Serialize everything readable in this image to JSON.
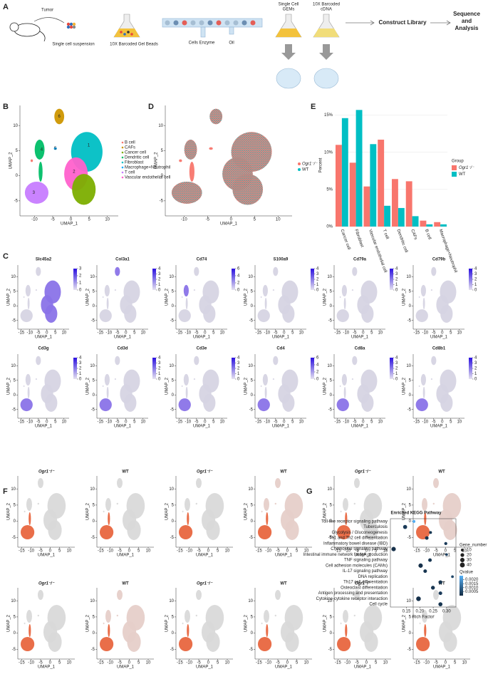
{
  "panel_labels": [
    "A",
    "B",
    "C",
    "D",
    "E",
    "F",
    "G"
  ],
  "workflow": {
    "tumor": "Tumor",
    "steps": [
      [
        "Single cell suspension"
      ],
      [
        "10X Barcoded Gel Beads"
      ],
      [
        "Cells Enzyme"
      ],
      [
        "Oil"
      ],
      [
        "Single Cell",
        "GEMs"
      ],
      [
        "10X Barcoded",
        "cDNA"
      ],
      [
        "Construct Library"
      ],
      [
        "Sequence",
        "and",
        "Analysis"
      ]
    ]
  },
  "umap": {
    "x_label": "UMAP_1",
    "y_label": "UMAP_2",
    "xlim": [
      -14,
      13
    ],
    "ylim": [
      -8,
      14
    ],
    "xticks": [
      -10,
      -5,
      0,
      5,
      10
    ],
    "yticks": [
      -5,
      0,
      5,
      10
    ]
  },
  "panel_b": {
    "cluster_labels": [
      "1",
      "2",
      "3",
      "4",
      "5",
      "6"
    ],
    "legend": [
      "B cell",
      "CAFs",
      "Cancer cell",
      "Dendritic cell",
      "Fibroblast",
      "Macrophage+Neutrophil",
      "T cell",
      "Vascular endothelial cell"
    ],
    "colors": [
      "#F8766D",
      "#CD9600",
      "#7CAE00",
      "#00BE67",
      "#00BFC4",
      "#00A9FF",
      "#C77CFF",
      "#FF61CC"
    ]
  },
  "panel_d": {
    "legend": [
      "Ogr1⁻/⁻",
      "WT"
    ],
    "colors": [
      "#F8766D",
      "#00BFC4"
    ]
  },
  "panel_c": {
    "genes": [
      "Slc45a2",
      "Col3a1",
      "Cd74",
      "S100a9",
      "Cd79a",
      "Cd79b",
      "Cd3g",
      "Cd3d",
      "Cd3e",
      "Cd4",
      "Cd8a",
      "Cd8b1"
    ],
    "scale_ticks": [
      [
        0,
        1,
        2,
        3
      ],
      [
        0,
        1,
        2,
        3,
        4
      ],
      [
        0,
        2,
        4,
        6
      ],
      [
        0,
        1,
        2,
        3,
        4
      ],
      [
        0,
        1,
        2,
        3,
        4
      ],
      [
        0,
        1,
        2,
        3,
        4
      ],
      [
        0,
        1,
        2,
        3,
        4
      ],
      [
        0,
        1,
        2,
        3,
        4
      ],
      [
        0,
        1,
        2,
        3,
        4
      ],
      [
        0,
        2,
        4,
        6
      ],
      [
        0,
        1,
        2,
        3,
        4
      ],
      [
        0,
        1,
        2,
        3,
        4
      ]
    ],
    "xlim": [
      -17,
      13
    ],
    "ylim": [
      -8,
      14
    ],
    "xticks": [
      -15,
      -10,
      -5,
      0,
      5,
      10
    ],
    "yticks": [
      -5,
      0,
      5,
      10
    ]
  },
  "panel_f": {
    "titles": [
      "Ogr1⁻/⁻",
      "WT",
      "Ogr1⁻/⁻",
      "WT",
      "Ogr1⁻/⁻",
      "WT",
      "Ogr1⁻/⁻",
      "WT",
      "Ogr1⁻/⁻",
      "WT",
      "Ogr1⁻/⁻",
      "WT"
    ]
  },
  "chart_data": [
    {
      "type": "bar",
      "y_label": "Percent",
      "legend_title": "Group",
      "categories": [
        "Cancer cell",
        "Fibroblast",
        "Vascular endothelial cell",
        "T cell",
        "Dendritic cell",
        "CAFs",
        "B cell",
        "Macrophage+Neutrophil"
      ],
      "series": [
        {
          "name": "Ogr1⁻/⁻",
          "color": "#F8766D",
          "values": [
            11,
            8.6,
            5.4,
            11.7,
            6.4,
            6.1,
            0.8,
            0.6
          ]
        },
        {
          "name": "WT",
          "color": "#00BFC4",
          "values": [
            14.6,
            15.7,
            11.1,
            2.8,
            2.5,
            1.4,
            0.3,
            0.3
          ]
        }
      ],
      "ylim": [
        0,
        16.5
      ],
      "yticks": [
        {
          "value": 0,
          "label": "0%"
        },
        {
          "value": 5,
          "label": "5%"
        },
        {
          "value": 10,
          "label": "10%"
        },
        {
          "value": 15,
          "label": "15%"
        }
      ],
      "grid": true
    },
    {
      "type": "dot",
      "title": "Enriched KEGG Pathway",
      "x_label": "Rich Factor",
      "categories": [
        "Toll-like receptor signaling pathway",
        "Tuberculosis",
        "Glycolysis / Gluconeogenesis",
        "Th1 and Th2 cell differentiation",
        "Inflammatory bowel disease (IBD)",
        "Chemokine signaling pathway",
        "Intestinal immune network for IgA production",
        "TNF signaling pathway",
        "Cell adhesion molecules (CAMs)",
        "IL-17 signaling pathway",
        "DNA replication",
        "Th17 cell differentiation",
        "Osteoclast differentiation",
        "Antigen processing and presentation",
        "Cytokine-cytokine receptor interaction",
        "Cell cycle"
      ],
      "values": [
        0.178,
        0.145,
        0.24,
        0.226,
        0.297,
        0.102,
        0.3,
        0.238,
        0.203,
        0.22,
        0.322,
        0.277,
        0.249,
        0.277,
        0.195,
        0.277
      ],
      "sizes": [
        10,
        25,
        10,
        18,
        12,
        30,
        8,
        18,
        30,
        18,
        8,
        20,
        22,
        18,
        35,
        25
      ],
      "qvalues": [
        0.0024,
        0.0003,
        0.0002,
        0.0002,
        0.0003,
        0.0001,
        0.0004,
        0.0002,
        0.0001,
        0.0002,
        0.0005,
        0.0002,
        0.0002,
        0.0003,
        0.0001,
        0.0002
      ],
      "xlim": [
        0.09,
        0.335
      ],
      "xticks": [
        {
          "value": 0.15,
          "label": "0.15"
        },
        {
          "value": 0.2,
          "label": "0.20"
        },
        {
          "value": 0.25,
          "label": "0.25"
        },
        {
          "value": 0.3,
          "label": "0.30"
        }
      ],
      "size_legend": {
        "title": "Gene_number",
        "values": [
          10,
          20,
          30,
          40
        ]
      },
      "color_legend": {
        "title": "Qvalue",
        "low": "#132B43",
        "high": "#56B1F7",
        "lim": [
          0,
          0.0025
        ],
        "ticks": [
          {
            "value": 0.002,
            "label": "0.0020"
          },
          {
            "value": 0.0015,
            "label": "0.0015"
          },
          {
            "value": 0.001,
            "label": "0.0010"
          },
          {
            "value": 0.0005,
            "label": "0.0005"
          }
        ]
      }
    }
  ]
}
